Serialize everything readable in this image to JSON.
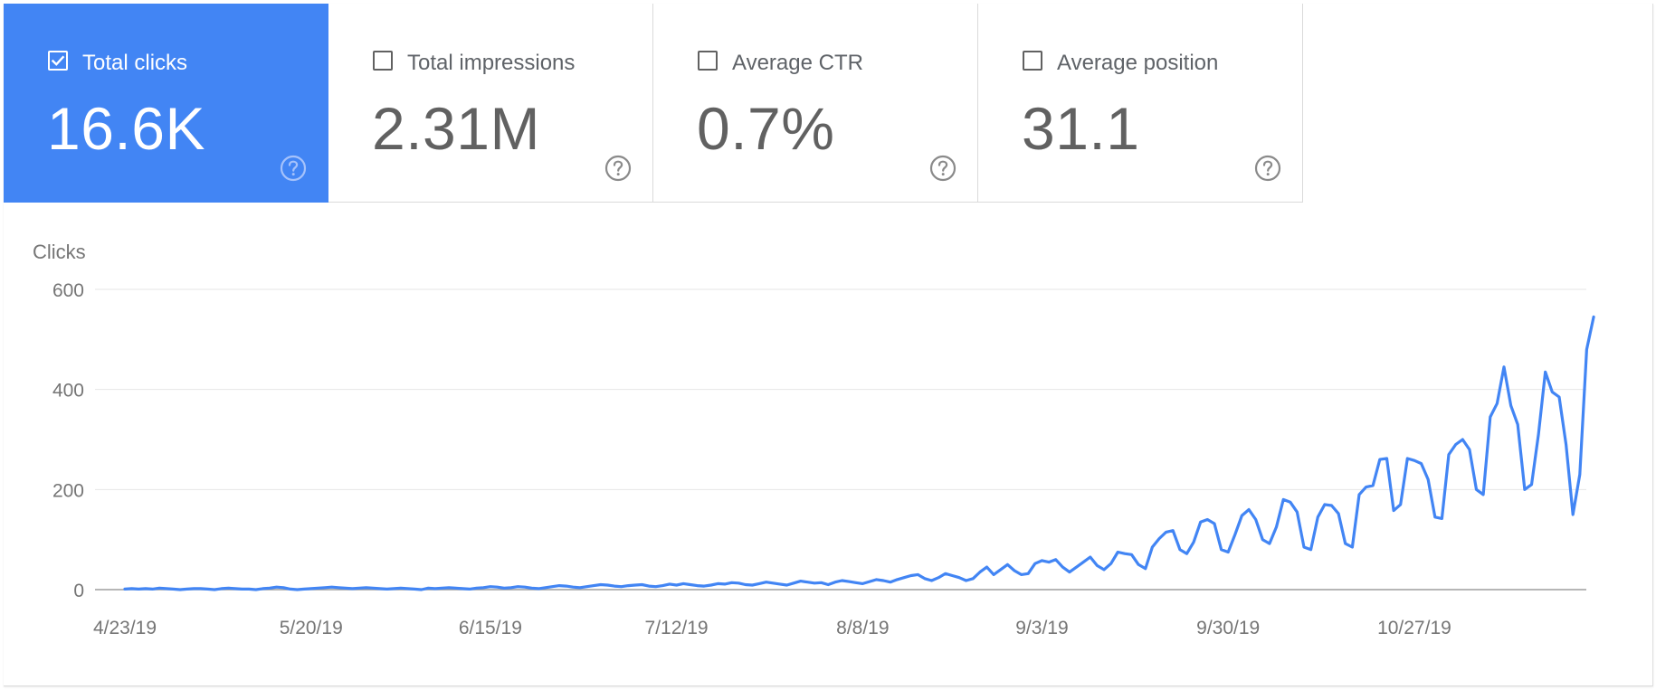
{
  "metrics": [
    {
      "label": "Total clicks",
      "value": "16.6K",
      "checked": true
    },
    {
      "label": "Total impressions",
      "value": "2.31M",
      "checked": false
    },
    {
      "label": "Average CTR",
      "value": "0.7%",
      "checked": false
    },
    {
      "label": "Average position",
      "value": "31.1",
      "checked": false
    }
  ],
  "colors": {
    "accent": "#4285f4",
    "line": "#4285f4",
    "grid": "#e6e6e6",
    "axis": "#9e9e9e",
    "text": "#616161"
  },
  "icons": {
    "checkbox": "checkbox-icon",
    "help": "help-circle-icon"
  },
  "chart_data": {
    "type": "line",
    "ylabel": "Clicks",
    "ylim": [
      0,
      600
    ],
    "yticks": [
      0,
      200,
      400,
      600
    ],
    "x_start_date": "4/23/19",
    "x_tick_labels": [
      "4/23/19",
      "5/20/19",
      "6/15/19",
      "7/12/19",
      "8/8/19",
      "9/3/19",
      "9/30/19",
      "10/27/19"
    ],
    "grid": true,
    "series": [
      {
        "values": [
          1,
          2,
          1,
          2,
          1,
          3,
          2,
          1,
          0,
          1,
          2,
          2,
          1,
          0,
          2,
          3,
          2,
          1,
          1,
          0,
          2,
          3,
          5,
          4,
          1,
          0,
          1,
          2,
          3,
          4,
          5,
          4,
          3,
          2,
          3,
          4,
          3,
          2,
          1,
          2,
          3,
          2,
          1,
          0,
          3,
          2,
          3,
          4,
          3,
          2,
          1,
          3,
          4,
          6,
          5,
          3,
          4,
          6,
          5,
          3,
          2,
          4,
          6,
          8,
          7,
          5,
          4,
          6,
          8,
          10,
          9,
          7,
          6,
          8,
          9,
          10,
          7,
          6,
          8,
          11,
          9,
          12,
          10,
          8,
          7,
          9,
          12,
          11,
          14,
          13,
          10,
          9,
          12,
          15,
          13,
          11,
          9,
          13,
          17,
          15,
          13,
          14,
          10,
          15,
          18,
          16,
          14,
          12,
          16,
          20,
          18,
          15,
          20,
          24,
          28,
          30,
          22,
          18,
          24,
          32,
          28,
          24,
          18,
          22,
          35,
          45,
          30,
          40,
          50,
          38,
          30,
          32,
          52,
          58,
          55,
          60,
          45,
          35,
          45,
          55,
          65,
          48,
          40,
          52,
          75,
          72,
          70,
          50,
          42,
          85,
          102,
          115,
          118,
          80,
          72,
          95,
          135,
          140,
          132,
          80,
          75,
          110,
          148,
          160,
          140,
          100,
          92,
          125,
          180,
          175,
          155,
          85,
          80,
          145,
          170,
          168,
          152,
          92,
          85,
          190,
          205,
          208,
          260,
          262,
          158,
          170,
          262,
          258,
          252,
          220,
          145,
          142,
          270,
          290,
          300,
          280,
          200,
          190,
          345,
          372,
          445,
          368,
          330,
          200,
          210,
          310,
          435,
          395,
          385,
          290,
          150,
          230,
          480,
          545
        ]
      }
    ]
  }
}
